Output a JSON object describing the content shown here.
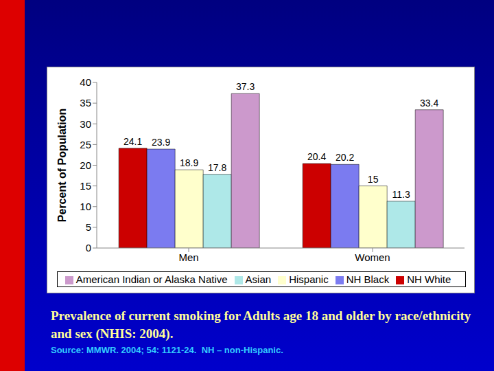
{
  "chart_data": {
    "type": "bar",
    "title": "Prevalence of current smoking for Adults age 18 and older by race/ethnicity and sex (NHIS: 2004).",
    "subtitle": "Source: MMWR. 2004; 54: 1121-24.  NH – non-Hispanic.",
    "y_label": "Percent of Population",
    "categories": [
      "Men",
      "Women"
    ],
    "series": [
      {
        "name": "NH White",
        "color": "#cc0000",
        "values": [
          24.1,
          20.4
        ]
      },
      {
        "name": "NH Black",
        "color": "#7b7bf0",
        "values": [
          23.9,
          20.2
        ]
      },
      {
        "name": "Hispanic",
        "color": "#ffffcc",
        "values": [
          18.9,
          15
        ]
      },
      {
        "name": "Asian",
        "color": "#aee8e8",
        "values": [
          17.8,
          11.3
        ]
      },
      {
        "name": "American Indian or Alaska Native",
        "color": "#cc99cc",
        "values": [
          37.3,
          33.4
        ]
      }
    ],
    "ylim": [
      0,
      40
    ],
    "yticks": [
      0,
      5,
      10,
      15,
      20,
      25,
      30,
      35,
      40
    ],
    "grid": false,
    "legend": "bottom",
    "data_labels": true
  }
}
